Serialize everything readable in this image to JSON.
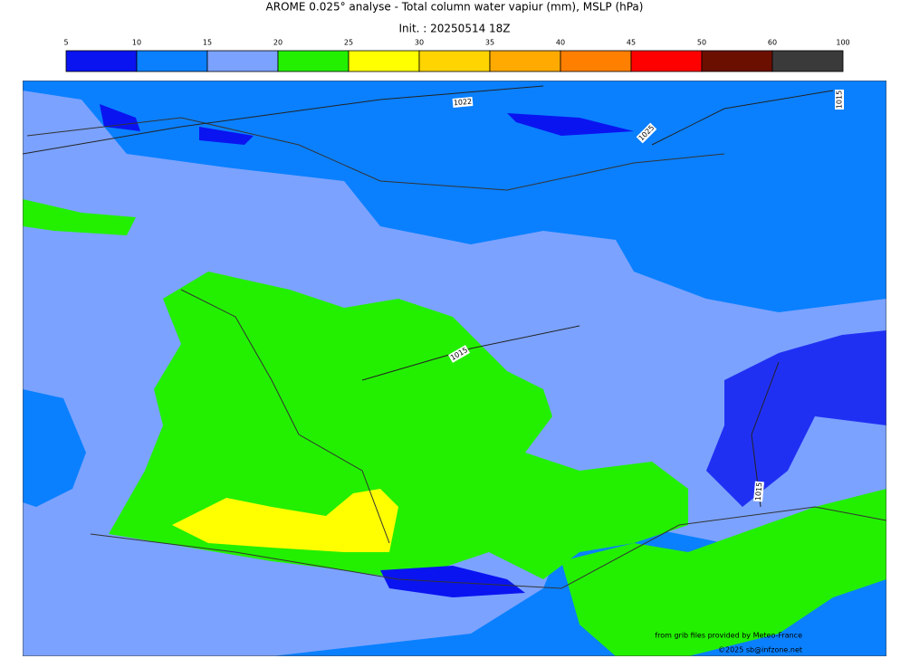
{
  "title": "AROME 0.025° analyse - Total column water vapiur (mm), MSLP (hPa)",
  "subtitle": "Init. : 20250514 18Z",
  "colorbar": {
    "ticks": [
      5,
      10,
      15,
      20,
      25,
      30,
      35,
      40,
      45,
      50,
      60,
      100
    ],
    "colors": [
      "#0a14f0",
      "#0a80ff",
      "#7ba2ff",
      "#22f000",
      "#ffff00",
      "#ffd400",
      "#ffaa00",
      "#ff7f00",
      "#ff0000",
      "#6b0f00",
      "#3a3a3a"
    ]
  },
  "isobar_labels": [
    "1022",
    "1025",
    "1015",
    "1015",
    "1015"
  ],
  "credits": [
    "from grib files provided by Meteo-France",
    "©2025 sb@infzone.net"
  ]
}
